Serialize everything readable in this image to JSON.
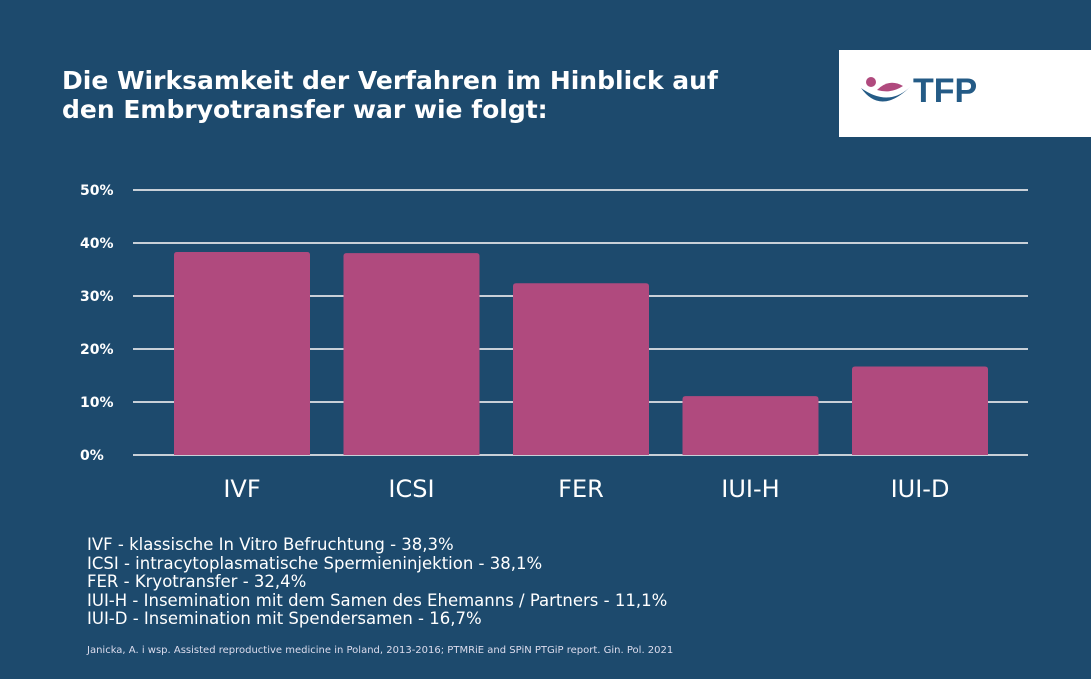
{
  "title": "Die Wirksamkeit der Verfahren im Hinblick auf den Embryotransfer war wie folgt:",
  "logo": {
    "text": "TFP",
    "colors": {
      "blue": "#245b86",
      "pink": "#b04a7e"
    }
  },
  "colors": {
    "background": "#1d4a6d",
    "bar": "#b04a7e",
    "grid": "#c8d0d8"
  },
  "chart_data": {
    "type": "bar",
    "categories": [
      "IVF",
      "ICSI",
      "FER",
      "IUI-H",
      "IUI-D"
    ],
    "values": [
      38.3,
      38.1,
      32.4,
      11.1,
      16.7
    ],
    "ylim": [
      0,
      50
    ],
    "yticks": [
      "0%",
      "10%",
      "20%",
      "30%",
      "40%",
      "50%"
    ],
    "grid": true
  },
  "legend": [
    "IVF - klassische In Vitro Befruchtung - 38,3%",
    "ICSI - intracytoplasmatische Spermieninjektion - 38,1%",
    "FER - Kryotransfer - 32,4%",
    "IUI-H - Insemination mit dem Samen des Ehemanns / Partners - 11,1%",
    "IUI-D - Insemination mit Spendersamen - 16,7%"
  ],
  "source": "Janicka, A. i wsp. Assisted reproductive medicine in Poland, 2013-2016; PTMRiE and SPiN PTGiP report. Gin. Pol. 2021"
}
